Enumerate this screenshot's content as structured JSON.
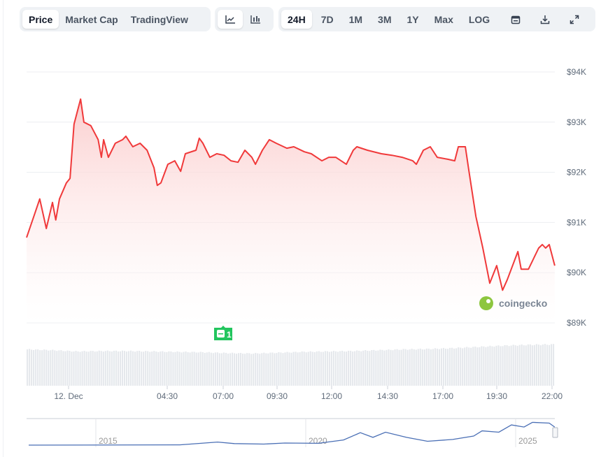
{
  "toolbar": {
    "view_tabs": [
      {
        "label": "Price",
        "active": true
      },
      {
        "label": "Market Cap",
        "active": false
      },
      {
        "label": "TradingView",
        "active": false
      }
    ],
    "chart_type_buttons": [
      {
        "icon": "line-chart-icon",
        "active": true
      },
      {
        "icon": "candlestick-chart-icon",
        "active": false
      }
    ],
    "range_tabs": [
      {
        "label": "24H",
        "active": true
      },
      {
        "label": "7D",
        "active": false
      },
      {
        "label": "1M",
        "active": false
      },
      {
        "label": "3M",
        "active": false
      },
      {
        "label": "1Y",
        "active": false
      },
      {
        "label": "Max",
        "active": false
      },
      {
        "label": "LOG",
        "active": false
      }
    ],
    "action_icons": [
      "calendar-icon",
      "download-icon",
      "expand-icon"
    ]
  },
  "watermark": "coingecko",
  "event_badge": {
    "count": "1",
    "color": "#22c55e"
  },
  "colors": {
    "line": "#f0393a",
    "fill": "#fcd9d9",
    "volume": "#e5e8ec",
    "navigator": "#4a6fb5"
  },
  "chart_data": {
    "type": "line",
    "title": "",
    "xlabel": "",
    "ylabel": "",
    "y_ticks": [
      "$94K",
      "$93K",
      "$92K",
      "$91K",
      "$90K",
      "$89K"
    ],
    "ylim": [
      89000,
      94000
    ],
    "x_ticks": [
      "12. Dec",
      "04:30",
      "07:00",
      "09:30",
      "12:00",
      "14:30",
      "17:00",
      "19:30",
      "22:00"
    ],
    "grid": true,
    "series": [
      {
        "points": [
          [
            "Dec 11 22:05",
            90700
          ],
          [
            "Dec 11 22:28",
            91190
          ],
          [
            "Dec 11 22:41",
            91470
          ],
          [
            "Dec 11 22:59",
            90880
          ],
          [
            "Dec 11 23:16",
            91400
          ],
          [
            "Dec 11 23:25",
            91050
          ],
          [
            "Dec 11 23:35",
            91470
          ],
          [
            "Dec 11 23:54",
            91790
          ],
          [
            "Dec 12 00:04",
            91880
          ],
          [
            "Dec 12 00:15",
            92960
          ],
          [
            "Dec 12 00:33",
            93460
          ],
          [
            "Dec 12 00:42",
            93000
          ],
          [
            "Dec 12 01:01",
            92930
          ],
          [
            "Dec 12 01:21",
            92650
          ],
          [
            "Dec 12 01:30",
            92300
          ],
          [
            "Dec 12 01:36",
            92650
          ],
          [
            "Dec 12 01:49",
            92300
          ],
          [
            "Dec 12 02:08",
            92580
          ],
          [
            "Dec 12 02:28",
            92650
          ],
          [
            "Dec 12 02:37",
            92720
          ],
          [
            "Dec 12 02:56",
            92510
          ],
          [
            "Dec 12 03:16",
            92580
          ],
          [
            "Dec 12 03:35",
            92440
          ],
          [
            "Dec 12 03:54",
            92090
          ],
          [
            "Dec 12 04:03",
            91740
          ],
          [
            "Dec 12 04:13",
            91790
          ],
          [
            "Dec 12 04:32",
            92160
          ],
          [
            "Dec 12 04:51",
            92230
          ],
          [
            "Dec 12 05:07",
            92020
          ],
          [
            "Dec 12 05:20",
            92370
          ],
          [
            "Dec 12 05:49",
            92440
          ],
          [
            "Dec 12 05:58",
            92680
          ],
          [
            "Dec 12 06:08",
            92580
          ],
          [
            "Dec 12 06:27",
            92300
          ],
          [
            "Dec 12 06:46",
            92370
          ],
          [
            "Dec 12 07:06",
            92340
          ],
          [
            "Dec 12 07:25",
            92230
          ],
          [
            "Dec 12 07:44",
            92200
          ],
          [
            "Dec 12 08:03",
            92440
          ],
          [
            "Dec 12 08:22",
            92300
          ],
          [
            "Dec 12 08:32",
            92160
          ],
          [
            "Dec 12 08:51",
            92440
          ],
          [
            "Dec 12 09:10",
            92650
          ],
          [
            "Dec 12 09:29",
            92580
          ],
          [
            "Dec 12 09:58",
            92480
          ],
          [
            "Dec 12 10:17",
            92510
          ],
          [
            "Dec 12 10:46",
            92410
          ],
          [
            "Dec 12 11:05",
            92370
          ],
          [
            "Dec 12 11:34",
            92230
          ],
          [
            "Dec 12 11:53",
            92300
          ],
          [
            "Dec 12 12:12",
            92300
          ],
          [
            "Dec 12 12:41",
            92160
          ],
          [
            "Dec 12 13:00",
            92440
          ],
          [
            "Dec 12 13:10",
            92510
          ],
          [
            "Dec 12 13:39",
            92440
          ],
          [
            "Dec 12 14:17",
            92370
          ],
          [
            "Dec 12 14:46",
            92340
          ],
          [
            "Dec 12 15:14",
            92300
          ],
          [
            "Dec 12 15:43",
            92230
          ],
          [
            "Dec 12 15:53",
            92160
          ],
          [
            "Dec 12 16:12",
            92440
          ],
          [
            "Dec 12 16:31",
            92510
          ],
          [
            "Dec 12 16:50",
            92300
          ],
          [
            "Dec 12 17:19",
            92260
          ],
          [
            "Dec 12 17:38",
            92230
          ],
          [
            "Dec 12 17:48",
            92510
          ],
          [
            "Dec 12 18:07",
            92510
          ],
          [
            "Dec 12 18:17",
            92020
          ],
          [
            "Dec 12 18:36",
            91120
          ],
          [
            "Dec 12 18:55",
            90490
          ],
          [
            "Dec 12 19:14",
            89790
          ],
          [
            "Dec 12 19:33",
            90140
          ],
          [
            "Dec 12 19:49",
            89650
          ],
          [
            "Dec 12 20:02",
            89860
          ],
          [
            "Dec 12 20:31",
            90420
          ],
          [
            "Dec 12 20:40",
            90070
          ],
          [
            "Dec 12 21:00",
            90070
          ],
          [
            "Dec 12 21:28",
            90490
          ],
          [
            "Dec 12 21:38",
            90560
          ],
          [
            "Dec 12 21:47",
            90490
          ],
          [
            "Dec 12 21:57",
            90560
          ],
          [
            "Dec 12 22:12",
            90140
          ]
        ]
      }
    ],
    "volume_relative": [
      0.88,
      0.86,
      0.83,
      0.84,
      0.84,
      0.83,
      0.82,
      0.81,
      0.79,
      0.78,
      0.8,
      0.82,
      0.83,
      0.84,
      0.86,
      0.88,
      0.89,
      0.91,
      0.94,
      0.97,
      0.99,
      1.0
    ],
    "navigator": {
      "x_ticks": [
        "2015",
        "2020",
        "2025"
      ],
      "points": [
        [
          2013.4,
          0.0
        ],
        [
          2017.0,
          0.01
        ],
        [
          2017.9,
          0.12
        ],
        [
          2018.3,
          0.06
        ],
        [
          2019.0,
          0.04
        ],
        [
          2019.5,
          0.08
        ],
        [
          2020.3,
          0.07
        ],
        [
          2020.9,
          0.2
        ],
        [
          2021.3,
          0.48
        ],
        [
          2021.6,
          0.3
        ],
        [
          2021.9,
          0.5
        ],
        [
          2022.4,
          0.3
        ],
        [
          2022.9,
          0.15
        ],
        [
          2023.5,
          0.22
        ],
        [
          2024.0,
          0.35
        ],
        [
          2024.2,
          0.55
        ],
        [
          2024.6,
          0.5
        ],
        [
          2024.9,
          0.78
        ],
        [
          2025.2,
          0.7
        ],
        [
          2025.4,
          0.88
        ],
        [
          2025.8,
          0.85
        ],
        [
          2025.93,
          0.7
        ]
      ]
    }
  }
}
